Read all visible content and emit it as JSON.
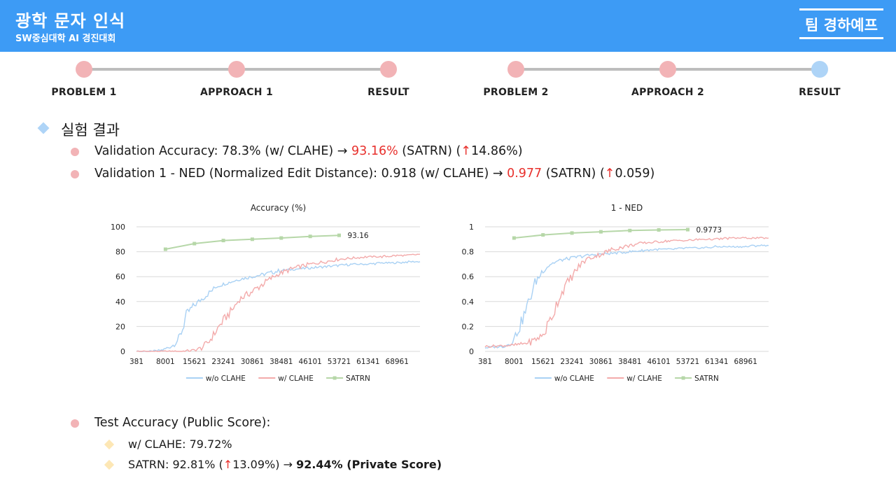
{
  "header": {
    "title": "광학 문자 인식",
    "subtitle": "SW중심대학 AI 경진대회",
    "team": "팀 경하예프"
  },
  "timeline": {
    "steps": [
      {
        "label": "PROBLEM 1",
        "color": "#f2b3b6"
      },
      {
        "label": "APPROACH 1",
        "color": "#f2b3b6"
      },
      {
        "label": "RESULT",
        "color": "#f2b3b6"
      },
      {
        "label": "PROBLEM 2",
        "color": "#f2b3b6"
      },
      {
        "label": "APPROACH 2",
        "color": "#f2b3b6"
      },
      {
        "label": "RESULT",
        "color": "#aed4f7"
      }
    ]
  },
  "section": {
    "title": "실험 결과",
    "bullets": [
      {
        "pre": "Validation Accuracy: 78.3% (w/ CLAHE) → ",
        "hl": "93.16%",
        "mid": " (SATRN) (",
        "arrow": "↑",
        "post": "14.86%)"
      },
      {
        "pre": "Validation 1 - NED (Normalized Edit Distance): 0.918 (w/ CLAHE) → ",
        "hl": "0.977",
        "mid": " (SATRN) (",
        "arrow": "↑",
        "post": "0.059)"
      }
    ],
    "test": {
      "title": "Test Accuracy (Public Score):",
      "items": [
        {
          "text": "w/ CLAHE: 79.72%"
        },
        {
          "pre": "SATRN: 92.81% (",
          "arrow": "↑",
          "mid": "13.09%) → ",
          "bold": "92.44% (Private Score)"
        }
      ]
    }
  },
  "colors": {
    "accent": "#3d9bf5",
    "pink": "#f2b3b6",
    "light_blue": "#aed4f7",
    "yellow": "#fde7b5",
    "red": "#e8302c",
    "series_wo": "#a9d1f4",
    "series_w": "#f3aaaa",
    "series_satrn": "#b6d7a8"
  },
  "chart_data": [
    {
      "type": "line",
      "title": "Accuracy (%)",
      "x_ticks": [
        "381",
        "8001",
        "15621",
        "23241",
        "30861",
        "38481",
        "46101",
        "53721",
        "61341",
        "68961"
      ],
      "x_range": [
        381,
        75000
      ],
      "ylim": [
        0,
        100
      ],
      "y_ticks": [
        "0",
        "20",
        "40",
        "60",
        "80",
        "100"
      ],
      "grid": true,
      "legend_position": "bottom",
      "series": [
        {
          "name": "w/o CLAHE",
          "color": "#a9d1f4",
          "x": [
            381,
            5000,
            7000,
            8001,
            10000,
            11500,
            12500,
            13500,
            15621,
            17500,
            19500,
            21500,
            23241,
            25500,
            27500,
            30861,
            34000,
            38481,
            42000,
            46101,
            50000,
            53721,
            57500,
            61341,
            65000,
            68961,
            72000,
            75000
          ],
          "y": [
            0,
            0,
            1,
            2,
            5,
            10,
            18,
            30,
            37,
            42,
            47,
            52,
            54,
            56,
            58,
            60,
            62,
            65,
            66,
            67,
            68,
            69,
            70,
            70,
            71,
            71,
            72,
            72
          ]
        },
        {
          "name": "w/ CLAHE",
          "color": "#f3aaaa",
          "x": [
            381,
            8001,
            12000,
            15621,
            17500,
            19500,
            21000,
            23241,
            25500,
            27500,
            30861,
            34000,
            36500,
            38481,
            42000,
            46101,
            50000,
            53721,
            57500,
            61341,
            65000,
            68961,
            72000,
            75000
          ],
          "y": [
            0,
            0,
            0,
            1,
            3,
            8,
            15,
            25,
            33,
            42,
            48,
            55,
            60,
            63,
            67,
            70,
            72,
            74,
            75,
            76,
            76,
            77,
            77,
            78
          ]
        },
        {
          "name": "SATRN",
          "color": "#b6d7a8",
          "marker": "square",
          "x": [
            8001,
            15621,
            23241,
            30861,
            38481,
            46101,
            53721
          ],
          "y": [
            82,
            86.5,
            89,
            90,
            91,
            92.3,
            93.16
          ],
          "end_label": "93.16"
        }
      ]
    },
    {
      "type": "line",
      "title": "1 - NED",
      "x_ticks": [
        "381",
        "8001",
        "15621",
        "23241",
        "30861",
        "38481",
        "46101",
        "53721",
        "61341",
        "68961"
      ],
      "x_range": [
        381,
        75000
      ],
      "ylim": [
        0,
        1
      ],
      "y_ticks": [
        "0",
        "0.2",
        "0.4",
        "0.6",
        "0.8",
        "1"
      ],
      "grid": true,
      "legend_position": "bottom",
      "series": [
        {
          "name": "w/o CLAHE",
          "color": "#a9d1f4",
          "x": [
            381,
            5000,
            7000,
            8001,
            9500,
            11000,
            12500,
            13500,
            15621,
            17500,
            20000,
            23241,
            27000,
            30861,
            35000,
            38481,
            42000,
            46101,
            50000,
            53721,
            57500,
            61341,
            65000,
            68961,
            72000,
            75000
          ],
          "y": [
            0.03,
            0.04,
            0.06,
            0.1,
            0.2,
            0.32,
            0.45,
            0.55,
            0.65,
            0.7,
            0.73,
            0.75,
            0.77,
            0.78,
            0.79,
            0.8,
            0.81,
            0.82,
            0.82,
            0.83,
            0.83,
            0.84,
            0.84,
            0.84,
            0.85,
            0.85
          ]
        },
        {
          "name": "w/ CLAHE",
          "color": "#f3aaaa",
          "x": [
            381,
            8001,
            12000,
            15621,
            17500,
            19500,
            21000,
            23241,
            25000,
            27000,
            30861,
            34000,
            38481,
            42000,
            46101,
            50000,
            53721,
            57500,
            61341,
            65000,
            68961,
            72000,
            75000
          ],
          "y": [
            0.04,
            0.05,
            0.07,
            0.13,
            0.25,
            0.4,
            0.5,
            0.6,
            0.68,
            0.74,
            0.78,
            0.82,
            0.85,
            0.87,
            0.88,
            0.89,
            0.89,
            0.9,
            0.9,
            0.91,
            0.91,
            0.91,
            0.91
          ]
        },
        {
          "name": "SATRN",
          "color": "#b6d7a8",
          "marker": "square",
          "x": [
            8001,
            15621,
            23241,
            30861,
            38481,
            46101,
            53721
          ],
          "y": [
            0.91,
            0.935,
            0.95,
            0.96,
            0.97,
            0.975,
            0.9773
          ],
          "end_label": "0.9773"
        }
      ]
    }
  ]
}
